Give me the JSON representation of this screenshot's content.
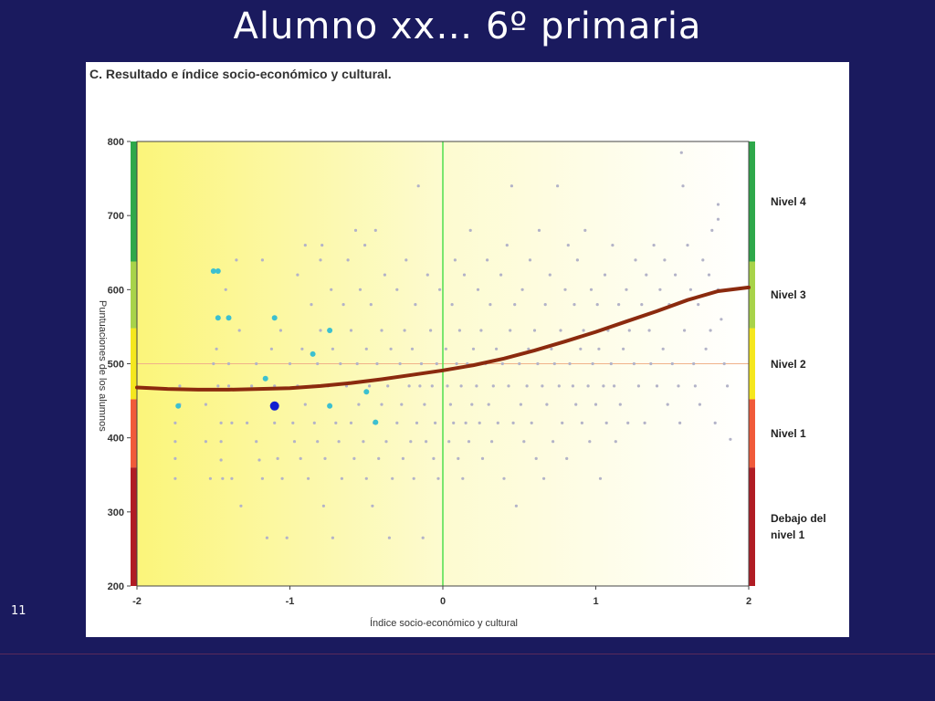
{
  "slide": {
    "title": "Alumno xx…  6º primaria",
    "number": "11"
  },
  "chart_data": {
    "type": "scatter",
    "title": "C. Resultado e índice socio-económico y cultural.",
    "xlabel": "Índice socio-económico y cultural",
    "ylabel": "Puntuaciones de los alumnos",
    "xlim": [
      -2,
      2
    ],
    "ylim": [
      200,
      800
    ],
    "x_ticks": [
      "-2",
      "-1",
      "0",
      "1",
      "2"
    ],
    "y_ticks": [
      "200",
      "300",
      "400",
      "500",
      "600",
      "700",
      "800"
    ],
    "reference_lines": {
      "x": 0,
      "y": 500
    },
    "levels": [
      {
        "label": "Debajo del nivel 1",
        "from": 200,
        "to": 360,
        "color": "#b01c24"
      },
      {
        "label": "Nivel 1",
        "from": 360,
        "to": 452,
        "color": "#f05a3a"
      },
      {
        "label": "Nivel 2",
        "from": 452,
        "to": 548,
        "color": "#f5e71e"
      },
      {
        "label": "Nivel 3",
        "from": 548,
        "to": 638,
        "color": "#a8d34a"
      },
      {
        "label": "Nivel 4",
        "from": 638,
        "to": 800,
        "color": "#2ea84a"
      }
    ],
    "series": [
      {
        "role": "other students",
        "color": "#b3b3c8",
        "points": [
          [
            -1.72,
            470
          ],
          [
            -1.72,
            445
          ],
          [
            -1.75,
            420
          ],
          [
            -1.75,
            395
          ],
          [
            -1.75,
            372
          ],
          [
            -1.75,
            345
          ],
          [
            -1.55,
            445
          ],
          [
            -1.55,
            395
          ],
          [
            -1.52,
            345
          ],
          [
            -1.5,
            500
          ],
          [
            -1.48,
            520
          ],
          [
            -1.47,
            470
          ],
          [
            -1.45,
            420
          ],
          [
            -1.45,
            395
          ],
          [
            -1.45,
            370
          ],
          [
            -1.44,
            345
          ],
          [
            -1.42,
            600
          ],
          [
            -1.4,
            500
          ],
          [
            -1.4,
            470
          ],
          [
            -1.38,
            420
          ],
          [
            -1.38,
            345
          ],
          [
            -1.35,
            640
          ],
          [
            -1.33,
            545
          ],
          [
            -1.32,
            308
          ],
          [
            -1.28,
            420
          ],
          [
            -1.25,
            470
          ],
          [
            -1.22,
            500
          ],
          [
            -1.22,
            395
          ],
          [
            -1.2,
            370
          ],
          [
            -1.18,
            345
          ],
          [
            -1.18,
            640
          ],
          [
            -1.15,
            265
          ],
          [
            -1.12,
            520
          ],
          [
            -1.1,
            470
          ],
          [
            -1.1,
            420
          ],
          [
            -1.08,
            372
          ],
          [
            -1.06,
            545
          ],
          [
            -1.05,
            345
          ],
          [
            -1.02,
            265
          ],
          [
            -1.0,
            500
          ],
          [
            -0.98,
            420
          ],
          [
            -0.97,
            395
          ],
          [
            -0.95,
            470
          ],
          [
            -0.95,
            620
          ],
          [
            -0.93,
            372
          ],
          [
            -0.92,
            520
          ],
          [
            -0.9,
            660
          ],
          [
            -0.9,
            445
          ],
          [
            -0.88,
            345
          ],
          [
            -0.86,
            580
          ],
          [
            -0.85,
            470
          ],
          [
            -0.84,
            420
          ],
          [
            -0.82,
            395
          ],
          [
            -0.82,
            500
          ],
          [
            -0.8,
            545
          ],
          [
            -0.8,
            640
          ],
          [
            -0.79,
            660
          ],
          [
            -0.78,
            308
          ],
          [
            -0.77,
            372
          ],
          [
            -0.75,
            470
          ],
          [
            -0.74,
            445
          ],
          [
            -0.73,
            600
          ],
          [
            -0.72,
            520
          ],
          [
            -0.72,
            265
          ],
          [
            -0.7,
            420
          ],
          [
            -0.68,
            395
          ],
          [
            -0.67,
            500
          ],
          [
            -0.66,
            345
          ],
          [
            -0.65,
            580
          ],
          [
            -0.63,
            470
          ],
          [
            -0.62,
            640
          ],
          [
            -0.6,
            545
          ],
          [
            -0.6,
            420
          ],
          [
            -0.58,
            372
          ],
          [
            -0.57,
            680
          ],
          [
            -0.56,
            500
          ],
          [
            -0.55,
            445
          ],
          [
            -0.54,
            600
          ],
          [
            -0.52,
            395
          ],
          [
            -0.51,
            660
          ],
          [
            -0.5,
            520
          ],
          [
            -0.5,
            345
          ],
          [
            -0.48,
            470
          ],
          [
            -0.47,
            580
          ],
          [
            -0.46,
            308
          ],
          [
            -0.45,
            420
          ],
          [
            -0.44,
            680
          ],
          [
            -0.43,
            500
          ],
          [
            -0.42,
            372
          ],
          [
            -0.4,
            545
          ],
          [
            -0.4,
            445
          ],
          [
            -0.38,
            620
          ],
          [
            -0.37,
            395
          ],
          [
            -0.36,
            470
          ],
          [
            -0.35,
            265
          ],
          [
            -0.34,
            520
          ],
          [
            -0.33,
            345
          ],
          [
            -0.3,
            600
          ],
          [
            -0.3,
            420
          ],
          [
            -0.28,
            500
          ],
          [
            -0.27,
            445
          ],
          [
            -0.26,
            372
          ],
          [
            -0.25,
            545
          ],
          [
            -0.24,
            640
          ],
          [
            -0.22,
            470
          ],
          [
            -0.21,
            395
          ],
          [
            -0.2,
            520
          ],
          [
            -0.19,
            345
          ],
          [
            -0.18,
            580
          ],
          [
            -0.17,
            420
          ],
          [
            -0.16,
            740
          ],
          [
            -0.15,
            470
          ],
          [
            -0.14,
            500
          ],
          [
            -0.13,
            265
          ],
          [
            -0.12,
            445
          ],
          [
            -0.11,
            395
          ],
          [
            -0.1,
            620
          ],
          [
            -0.08,
            545
          ],
          [
            -0.07,
            470
          ],
          [
            -0.06,
            372
          ],
          [
            -0.05,
            420
          ],
          [
            -0.04,
            500
          ],
          [
            -0.03,
            345
          ],
          [
            -0.02,
            600
          ],
          [
            0.02,
            520
          ],
          [
            0.03,
            470
          ],
          [
            0.04,
            395
          ],
          [
            0.05,
            445
          ],
          [
            0.06,
            580
          ],
          [
            0.07,
            420
          ],
          [
            0.08,
            640
          ],
          [
            0.09,
            500
          ],
          [
            0.1,
            372
          ],
          [
            0.11,
            545
          ],
          [
            0.12,
            470
          ],
          [
            0.13,
            345
          ],
          [
            0.14,
            620
          ],
          [
            0.15,
            420
          ],
          [
            0.16,
            500
          ],
          [
            0.17,
            395
          ],
          [
            0.18,
            680
          ],
          [
            0.19,
            445
          ],
          [
            0.2,
            520
          ],
          [
            0.22,
            470
          ],
          [
            0.23,
            600
          ],
          [
            0.24,
            420
          ],
          [
            0.25,
            545
          ],
          [
            0.26,
            372
          ],
          [
            0.28,
            500
          ],
          [
            0.29,
            640
          ],
          [
            0.3,
            445
          ],
          [
            0.31,
            580
          ],
          [
            0.32,
            395
          ],
          [
            0.33,
            470
          ],
          [
            0.35,
            520
          ],
          [
            0.36,
            420
          ],
          [
            0.38,
            620
          ],
          [
            0.39,
            500
          ],
          [
            0.4,
            345
          ],
          [
            0.42,
            660
          ],
          [
            0.43,
            470
          ],
          [
            0.44,
            545
          ],
          [
            0.45,
            740
          ],
          [
            0.46,
            420
          ],
          [
            0.47,
            580
          ],
          [
            0.48,
            308
          ],
          [
            0.5,
            500
          ],
          [
            0.51,
            445
          ],
          [
            0.52,
            600
          ],
          [
            0.53,
            395
          ],
          [
            0.55,
            470
          ],
          [
            0.56,
            520
          ],
          [
            0.57,
            640
          ],
          [
            0.58,
            420
          ],
          [
            0.6,
            545
          ],
          [
            0.61,
            372
          ],
          [
            0.62,
            500
          ],
          [
            0.63,
            680
          ],
          [
            0.65,
            470
          ],
          [
            0.66,
            345
          ],
          [
            0.67,
            580
          ],
          [
            0.68,
            445
          ],
          [
            0.7,
            620
          ],
          [
            0.71,
            520
          ],
          [
            0.72,
            395
          ],
          [
            0.73,
            500
          ],
          [
            0.75,
            740
          ],
          [
            0.76,
            470
          ],
          [
            0.77,
            545
          ],
          [
            0.78,
            420
          ],
          [
            0.8,
            600
          ],
          [
            0.81,
            372
          ],
          [
            0.82,
            660
          ],
          [
            0.83,
            500
          ],
          [
            0.85,
            470
          ],
          [
            0.86,
            580
          ],
          [
            0.87,
            445
          ],
          [
            0.88,
            640
          ],
          [
            0.9,
            520
          ],
          [
            0.91,
            420
          ],
          [
            0.92,
            545
          ],
          [
            0.93,
            680
          ],
          [
            0.95,
            470
          ],
          [
            0.96,
            395
          ],
          [
            0.97,
            600
          ],
          [
            0.98,
            500
          ],
          [
            1.0,
            445
          ],
          [
            1.01,
            580
          ],
          [
            1.02,
            520
          ],
          [
            1.03,
            345
          ],
          [
            1.05,
            470
          ],
          [
            1.06,
            620
          ],
          [
            1.07,
            420
          ],
          [
            1.08,
            545
          ],
          [
            1.1,
            500
          ],
          [
            1.11,
            660
          ],
          [
            1.12,
            470
          ],
          [
            1.13,
            395
          ],
          [
            1.15,
            580
          ],
          [
            1.16,
            445
          ],
          [
            1.18,
            520
          ],
          [
            1.2,
            600
          ],
          [
            1.21,
            420
          ],
          [
            1.22,
            545
          ],
          [
            1.25,
            500
          ],
          [
            1.26,
            640
          ],
          [
            1.28,
            470
          ],
          [
            1.3,
            580
          ],
          [
            1.32,
            420
          ],
          [
            1.33,
            620
          ],
          [
            1.35,
            545
          ],
          [
            1.36,
            500
          ],
          [
            1.38,
            660
          ],
          [
            1.4,
            470
          ],
          [
            1.42,
            600
          ],
          [
            1.44,
            520
          ],
          [
            1.45,
            640
          ],
          [
            1.47,
            445
          ],
          [
            1.48,
            580
          ],
          [
            1.5,
            500
          ],
          [
            1.52,
            620
          ],
          [
            1.54,
            470
          ],
          [
            1.55,
            420
          ],
          [
            1.56,
            785
          ],
          [
            1.57,
            740
          ],
          [
            1.58,
            545
          ],
          [
            1.6,
            660
          ],
          [
            1.62,
            600
          ],
          [
            1.64,
            500
          ],
          [
            1.65,
            470
          ],
          [
            1.67,
            580
          ],
          [
            1.68,
            445
          ],
          [
            1.7,
            640
          ],
          [
            1.72,
            520
          ],
          [
            1.74,
            620
          ],
          [
            1.75,
            545
          ],
          [
            1.76,
            680
          ],
          [
            1.78,
            420
          ],
          [
            1.8,
            715
          ],
          [
            1.8,
            695
          ],
          [
            1.8,
            600
          ],
          [
            1.82,
            560
          ],
          [
            1.84,
            500
          ],
          [
            1.86,
            470
          ],
          [
            1.88,
            398
          ]
        ]
      },
      {
        "role": "highlighted students",
        "color": "#3cc0d0",
        "points": [
          [
            -1.73,
            443
          ],
          [
            -1.5,
            625
          ],
          [
            -1.47,
            625
          ],
          [
            -1.47,
            562
          ],
          [
            -1.4,
            562
          ],
          [
            -1.16,
            480
          ],
          [
            -1.1,
            562
          ],
          [
            -0.85,
            513
          ],
          [
            -0.74,
            545
          ],
          [
            -0.74,
            443
          ],
          [
            -0.5,
            462
          ],
          [
            -0.44,
            421
          ]
        ]
      },
      {
        "role": "alumno",
        "color": "#1020d0",
        "points": [
          [
            -1.1,
            443
          ]
        ]
      },
      {
        "role": "trend",
        "color": "#8b2a0e",
        "points": [
          [
            -2,
            468
          ],
          [
            -1.8,
            466
          ],
          [
            -1.6,
            465
          ],
          [
            -1.4,
            465
          ],
          [
            -1.2,
            466
          ],
          [
            -1.0,
            467
          ],
          [
            -0.8,
            470
          ],
          [
            -0.6,
            474
          ],
          [
            -0.4,
            479
          ],
          [
            -0.2,
            485
          ],
          [
            0,
            491
          ],
          [
            0.2,
            498
          ],
          [
            0.4,
            507
          ],
          [
            0.6,
            518
          ],
          [
            0.8,
            530
          ],
          [
            1.0,
            543
          ],
          [
            1.2,
            557
          ],
          [
            1.4,
            571
          ],
          [
            1.6,
            586
          ],
          [
            1.8,
            598
          ],
          [
            2.0,
            603
          ]
        ]
      }
    ]
  }
}
